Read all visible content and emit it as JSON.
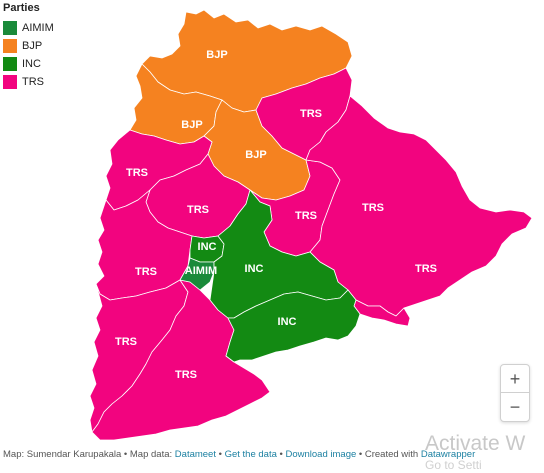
{
  "legend": {
    "title": "Parties",
    "items": [
      {
        "label": "AIMIM",
        "color": "#1a8a3a"
      },
      {
        "label": "BJP",
        "color": "#f58220"
      },
      {
        "label": "INC",
        "color": "#138a13"
      },
      {
        "label": "TRS",
        "color": "#f2047f"
      }
    ]
  },
  "regions": {
    "bjp_north": "BJP",
    "bjp_west": "BJP",
    "bjp_center": "BJP",
    "trs_ne": "TRS",
    "trs_nw": "TRS",
    "trs_center_w": "TRS",
    "trs_center_e": "TRS",
    "trs_east": "TRS",
    "trs_se": "TRS",
    "trs_w": "TRS",
    "trs_sw": "TRS",
    "trs_s": "TRS",
    "inc_small": "INC",
    "aimim": "AIMIM",
    "inc_center": "INC",
    "inc_south": "INC"
  },
  "zoom": {
    "in": "+",
    "out": "−"
  },
  "footer": {
    "map_by": "Map: Sumendar Karupakala • Map data: ",
    "datameet": "Datameet",
    "sep1": " • ",
    "get_data": "Get the data",
    "sep2": " • ",
    "download": "Download image",
    "sep3": " • Created with ",
    "datawrapper": "Datawrapper"
  },
  "watermark": {
    "text": "Activate W",
    "sub": "Go to Setti"
  },
  "colors": {
    "bjp": "#f58220",
    "trs": "#f2047f",
    "inc": "#138a13",
    "aimim": "#1a8a3a",
    "border": "#ffffff"
  }
}
